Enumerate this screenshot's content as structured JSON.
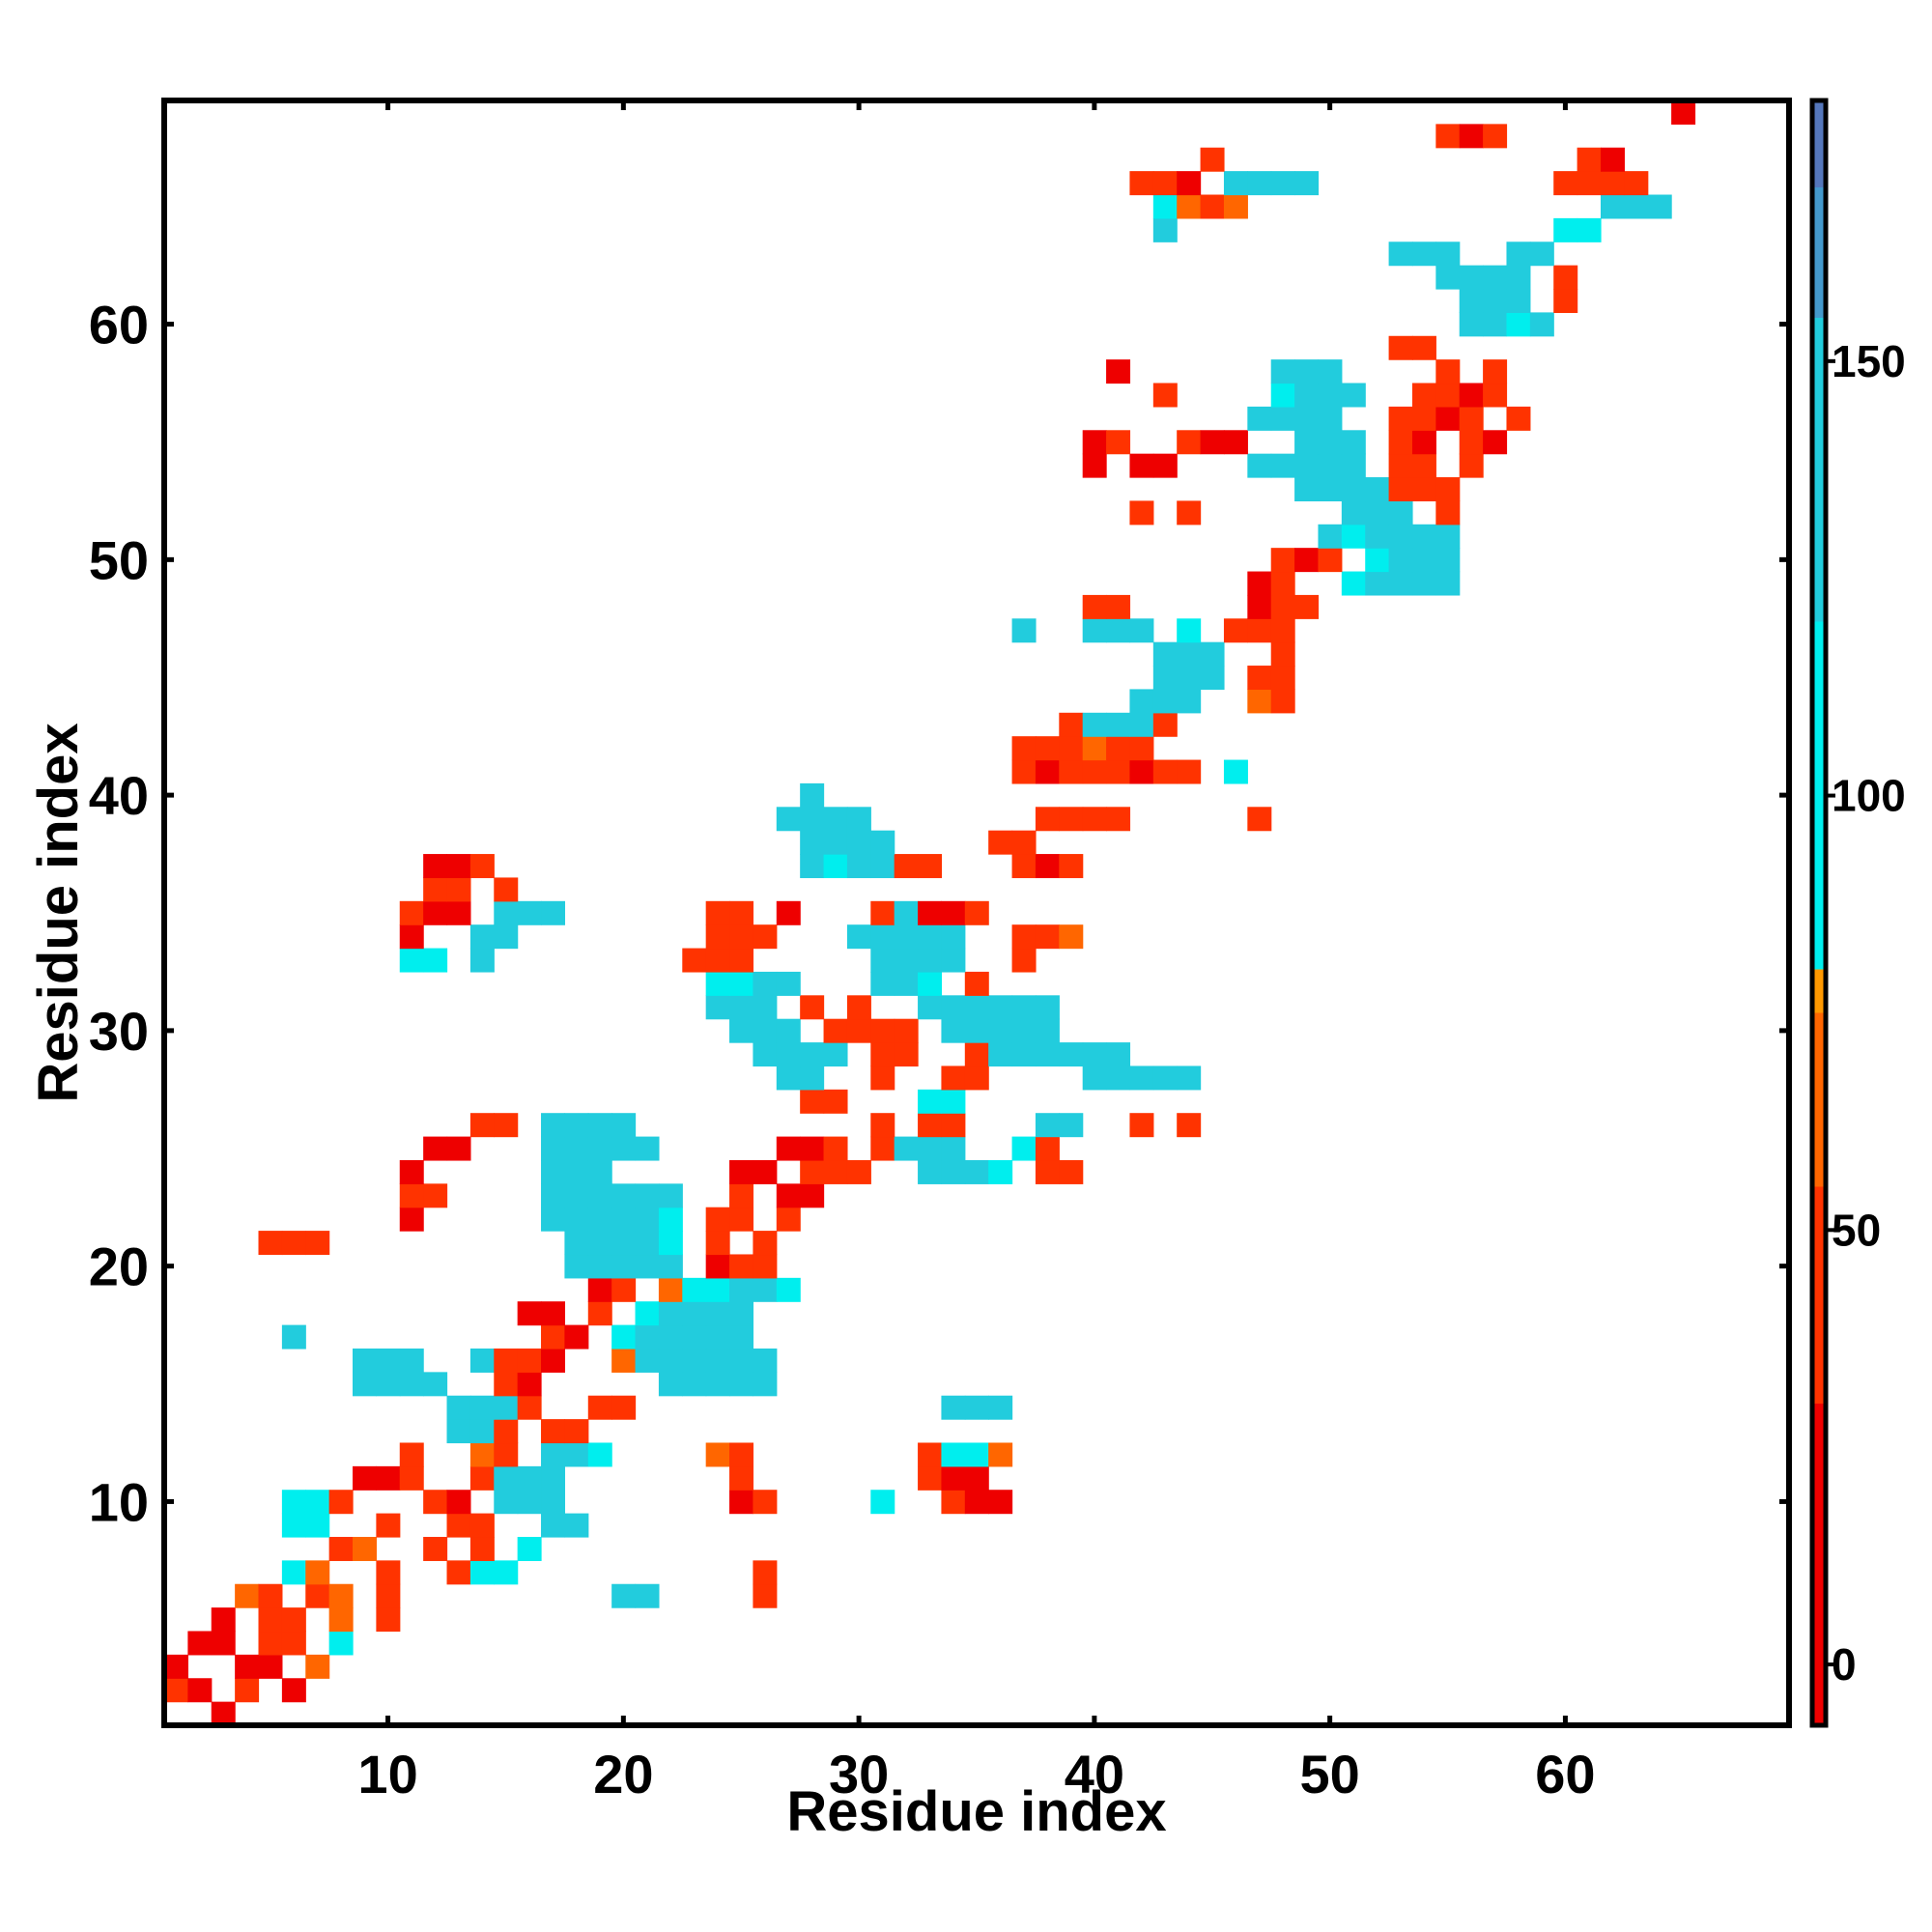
{
  "chart_data": {
    "type": "heatmap",
    "title": "",
    "xlabel": "Residue index",
    "ylabel": "Residue index",
    "n_residues": 69,
    "xlim": [
      0.5,
      69.5
    ],
    "ylim": [
      0.5,
      69.5
    ],
    "x_ticks": [
      10,
      20,
      30,
      40,
      50,
      60
    ],
    "y_ticks": [
      10,
      20,
      30,
      40,
      50,
      60
    ],
    "colorbar": {
      "ticks": [
        0,
        50,
        100,
        150
      ],
      "range": [
        -7,
        180
      ],
      "stops": [
        {
          "value": -7,
          "color": "#ee0000"
        },
        {
          "value": 30,
          "color": "#ff3300"
        },
        {
          "value": 55,
          "color": "#ff6600"
        },
        {
          "value": 75,
          "color": "#ff9900"
        },
        {
          "value": 80,
          "color": "#00eeee"
        },
        {
          "value": 120,
          "color": "#22ccdd"
        },
        {
          "value": 155,
          "color": "#4499cc"
        },
        {
          "value": 170,
          "color": "#5577bb"
        },
        {
          "value": 180,
          "color": "#ffffff"
        }
      ]
    },
    "cells_note_color_key": {
      "R": 5,
      "N": 30,
      "O": 55,
      "Y": 72,
      "C": 90,
      "T": 125,
      "B": 155,
      "D": 168
    },
    "rows": [
      {
        "y": 1,
        "s": "  R              "
      },
      {
        "y": 2,
        "s": "OR O R"
      },
      {
        "y": 3,
        "s": "R  RR Y"
      },
      {
        "y": 4,
        "s": " RR OO C"
      },
      {
        "y": 5,
        "s": "  R OO Y O"
      },
      {
        "y": 6,
        "s": "   YO OY O         TT    O"
      },
      {
        "y": 7,
        "s": "     CY  O  OCC          O"
      },
      {
        "y": 8,
        "s": "       OY  O O C"
      },
      {
        "y": 9,
        "s": "     CC  O  OO  TT"
      },
      {
        "y": 10,
        "s": "     CCO   OR TTT       RO    C  ORR"
      },
      {
        "y": 11,
        "s": "        RRO  OTTB       O       ORR"
      },
      {
        "y": 12,
        "s": "          O  YO TTC    YO       OCCY"
      },
      {
        "y": 13,
        "s": "            TTO OO"
      },
      {
        "y": 14,
        "s": "            TTTO  OO             TTB"
      },
      {
        "y": 15,
        "s": "        TTTT  OR     TTTTT"
      },
      {
        "y": 16,
        "s": "        TTB  TOOR  YTBBBBT"
      },
      {
        "y": 17,
        "s": "     T          OR CBBBBB"
      },
      {
        "y": 18,
        "s": "               RR O CBBBB"
      },
      {
        "y": 19,
        "s": "                  RO YCCTTC"
      },
      {
        "y": 20,
        "s": "                 BTBTT ROO"
      },
      {
        "y": 21,
        "s": "    OOO          BBBBC O O"
      },
      {
        "y": 22,
        "s": "          R     TBBBBC OO O"
      },
      {
        "y": 23,
        "s": "          OO    BBBBBB  O RR"
      },
      {
        "y": 24,
        "s": "          R     TTT     RR OOO  BBBC OO"
      },
      {
        "y": 25,
        "s": "           RR   TTBBT     RRO OTBB  CO"
      },
      {
        "y": 26,
        "s": "             OO TTBB          O OO   TT  O O"
      },
      {
        "y": 27,
        "s": "                           OO   CC"
      },
      {
        "y": 28,
        "s": "                          TT  O  OO    TTTTT"
      },
      {
        "y": 29,
        "s": "                         TBBB OO  OBTTBBT"
      },
      {
        "y": 30,
        "s": "                        BBB OOOO TBTTT"
      },
      {
        "y": 31,
        "s": "                       TTB O O  TTBBBB"
      },
      {
        "y": 32,
        "s": "                       CCTT   TTC O"
      },
      {
        "y": 33,
        "s": "          CC T        OOO     TTBT  O"
      },
      {
        "y": 34,
        "s": "          R  TT        OOO   TTTBB  OOY"
      },
      {
        "y": 35,
        "s": "          ORR TBB      OO R   OTRRO"
      },
      {
        "y": 36,
        "s": "           OO O"
      },
      {
        "y": 37,
        "s": "           RRO             TCBTOO   ORO"
      },
      {
        "y": 38,
        "s": "                           TBTB    OO"
      },
      {
        "y": 39,
        "s": "                          TTTT       OOOO     O"
      },
      {
        "y": 40,
        "s": "                           T"
      },
      {
        "y": 41,
        "s": "                                    OROOOROO C"
      },
      {
        "y": 42,
        "s": "                                    OOOYOO"
      },
      {
        "y": 43,
        "s": "                                      OTTTO"
      },
      {
        "y": 44,
        "s": "                                         TTT  YO"
      },
      {
        "y": 45,
        "s": "                                          TTT OO"
      },
      {
        "y": 46,
        "s": "                                          TTT  O"
      },
      {
        "y": 47,
        "s": "                                    T  TTT C OOO"
      },
      {
        "y": 48,
        "s": "                                       OO     ROO"
      },
      {
        "y": 49,
        "s": "                                              RO  CTTTT"
      },
      {
        "y": 50,
        "s": "                                               ORO CTTT"
      },
      {
        "y": 51,
        "s": "                                                 TCTTTT"
      },
      {
        "y": 52,
        "s": "                                         O O      TTT O"
      },
      {
        "y": 53,
        "s": "                                                BTBTOOO"
      },
      {
        "y": 54,
        "s": "                                       R RR   BTTTT OO O"
      },
      {
        "y": 55,
        "s": "                                       RO  ORR  TTT OR OR"
      },
      {
        "y": 56,
        "s": "                                              TTBB  OORO O"
      },
      {
        "y": 57,
        "s": "                                          O    CTTT  OORO"
      },
      {
        "y": 58,
        "s": "                                        R      TTT    O O"
      },
      {
        "y": 59,
        "s": "                                                    OO"
      },
      {
        "y": 60,
        "s": "                                                       TTCT"
      },
      {
        "y": 61,
        "s": "                                                       TTT O"
      },
      {
        "y": 62,
        "s": "                                                      BBTT O"
      },
      {
        "y": 63,
        "s": "                                                    TTT  TT"
      },
      {
        "y": 64,
        "s": "                                          T                CC"
      },
      {
        "y": 65,
        "s": "                                          CYOY               BBB"
      },
      {
        "y": 66,
        "s": "                                         OOR TTBB          OOOO"
      },
      {
        "y": 67,
        "s": "                                            O               OR"
      },
      {
        "y": 68,
        "s": "                                                      ORO"
      },
      {
        "y": 69,
        "s": "                                                                R"
      }
    ]
  }
}
